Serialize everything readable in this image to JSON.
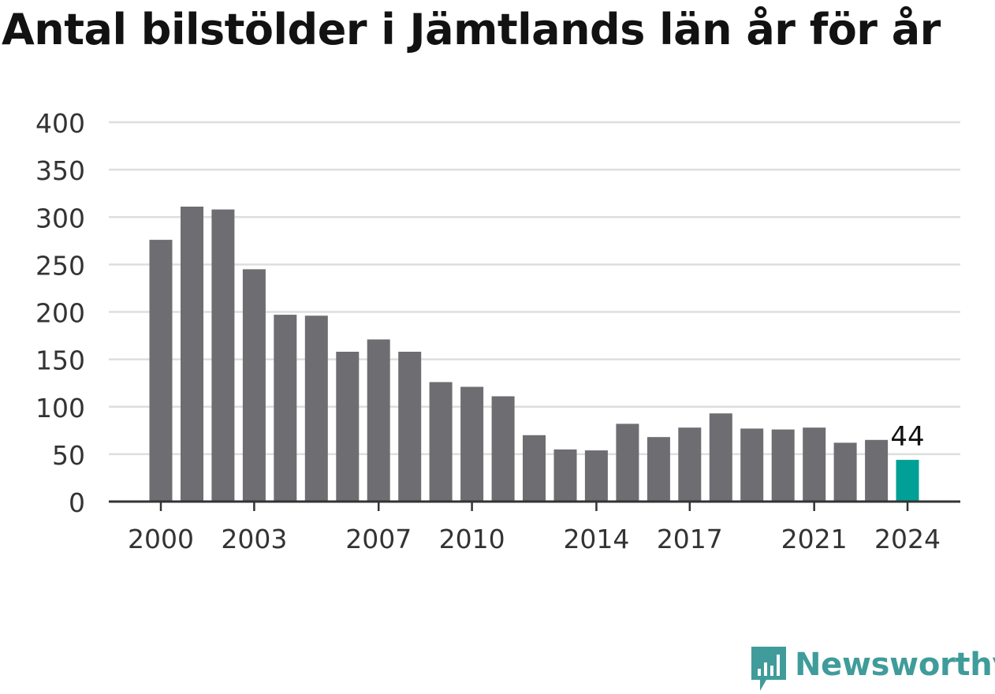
{
  "title": "Antal bilstölder i Jämtlands län år för år",
  "logo": {
    "text": "Newsworthy",
    "icon": "newsworthy-chart-icon"
  },
  "colors": {
    "bar": "#6e6d72",
    "highlight": "#00a096",
    "grid": "#dedede",
    "axis": "#333333",
    "tick_text": "#333333",
    "brand": "#3f9c9a"
  },
  "chart_data": {
    "type": "bar",
    "title": "Antal bilstölder i Jämtlands län år för år",
    "xlabel": "",
    "ylabel": "",
    "categories": [
      "2000",
      "2001",
      "2002",
      "2003",
      "2004",
      "2005",
      "2006",
      "2007",
      "2008",
      "2009",
      "2010",
      "2011",
      "2012",
      "2013",
      "2014",
      "2015",
      "2016",
      "2017",
      "2018",
      "2019",
      "2020",
      "2021",
      "2022",
      "2023",
      "2024"
    ],
    "values": [
      276,
      311,
      308,
      245,
      197,
      196,
      158,
      171,
      158,
      126,
      121,
      111,
      70,
      55,
      54,
      82,
      68,
      78,
      93,
      77,
      76,
      78,
      62,
      65,
      44
    ],
    "ylim": [
      0,
      400
    ],
    "yticks": [
      "0",
      "50",
      "100",
      "150",
      "200",
      "250",
      "300",
      "350",
      "400"
    ],
    "xtick_labels": [
      "2000",
      "2003",
      "2007",
      "2010",
      "2014",
      "2017",
      "2021",
      "2024"
    ],
    "highlight": {
      "category": "2024",
      "label": "44"
    },
    "grid": true,
    "legend": "none"
  }
}
